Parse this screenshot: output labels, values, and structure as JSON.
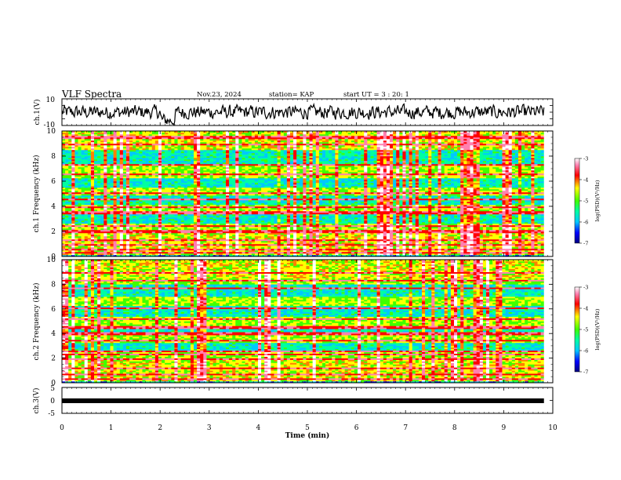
{
  "header": {
    "title": "VLF Spectra",
    "date": "Nov.23, 2024",
    "station": "station= KAP",
    "start": "start  UT =   3 : 20: 1"
  },
  "chart_data": [
    {
      "type": "line",
      "panel": "ch1-waveform",
      "ylabel": "ch.1(V)",
      "ylim": [
        -10,
        10
      ],
      "yticks": [
        "10",
        "-10"
      ],
      "xlim": [
        0,
        10
      ]
    },
    {
      "type": "heatmap",
      "panel": "ch1-spectrogram",
      "ylabel": "ch.1 Frequency (kHz)",
      "ylim": [
        0,
        10
      ],
      "yticks": [
        "0",
        "2",
        "4",
        "6",
        "8",
        "10"
      ],
      "xlim": [
        0,
        10
      ],
      "colorbar": {
        "label": "log(PSD)(V²/Hz)",
        "range": [
          -7,
          -3
        ],
        "ticks": [
          "-3",
          "-4",
          "-5",
          "-6",
          "-7"
        ]
      }
    },
    {
      "type": "heatmap",
      "panel": "ch2-spectrogram",
      "ylabel": "ch.2 Frequency (kHz)",
      "ylim": [
        0,
        10
      ],
      "yticks": [
        "0",
        "2",
        "4",
        "6",
        "8",
        "10"
      ],
      "xlim": [
        0,
        10
      ],
      "colorbar": {
        "label": "log(PSD)(V²/Hz)",
        "range": [
          -7,
          -3
        ],
        "ticks": [
          "-3",
          "-4",
          "-5",
          "-6",
          "-7"
        ]
      }
    },
    {
      "type": "line",
      "panel": "ch3-waveform",
      "ylabel": "ch.3(V)",
      "ylim": [
        -5,
        5
      ],
      "yticks": [
        "5",
        "0",
        "-5"
      ],
      "xlim": [
        0,
        10
      ]
    }
  ],
  "xaxis": {
    "label": "Time  (min)",
    "ticks": [
      "0",
      "1",
      "2",
      "3",
      "4",
      "5",
      "6",
      "7",
      "8",
      "9",
      "10"
    ],
    "range": [
      0,
      10
    ]
  },
  "colors": {
    "colormap": [
      "#000080",
      "#0000ff",
      "#00c8ff",
      "#00ffa0",
      "#40ff00",
      "#ffff00",
      "#ff8000",
      "#ff0000",
      "#ff80b0",
      "#ffffff"
    ]
  }
}
